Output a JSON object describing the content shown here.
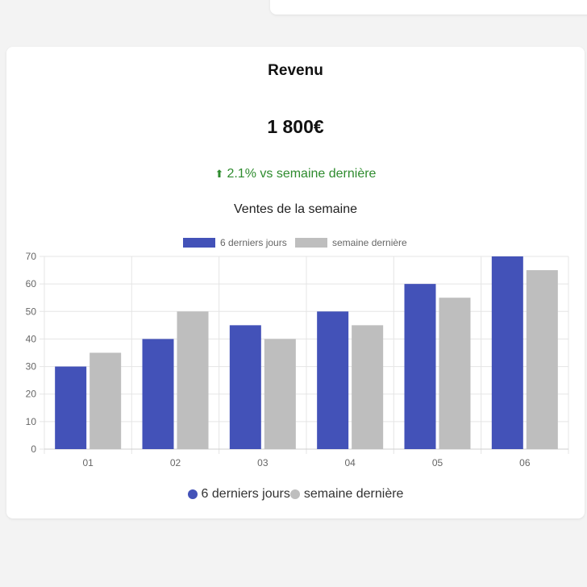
{
  "card": {
    "title": "Revenu",
    "amount": "1 800€",
    "trend_icon": "arrow-up-icon",
    "trend_text": "2.1% vs semaine dernière"
  },
  "colors": {
    "series1": "#4352b8",
    "series2": "#bebebe",
    "trend": "#2e8b2e",
    "grid": "#e5e5e5"
  },
  "chart_data": {
    "type": "bar",
    "title": "Ventes de la semaine",
    "categories": [
      "01",
      "02",
      "03",
      "04",
      "05",
      "06"
    ],
    "series": [
      {
        "name": "6 derniers jours",
        "values": [
          30,
          40,
          45,
          50,
          60,
          70
        ]
      },
      {
        "name": "semaine dernière",
        "values": [
          35,
          50,
          40,
          45,
          55,
          65
        ]
      }
    ],
    "ylim": [
      0,
      70
    ],
    "yticks": [
      0,
      10,
      20,
      30,
      40,
      50,
      60,
      70
    ],
    "xlabel": "",
    "ylabel": "",
    "grid": true,
    "legend_position": "top"
  },
  "bottom_legend": [
    {
      "label": "6 derniers jours",
      "color": "#4352b8"
    },
    {
      "label": "semaine dernière",
      "color": "#bebebe"
    }
  ]
}
